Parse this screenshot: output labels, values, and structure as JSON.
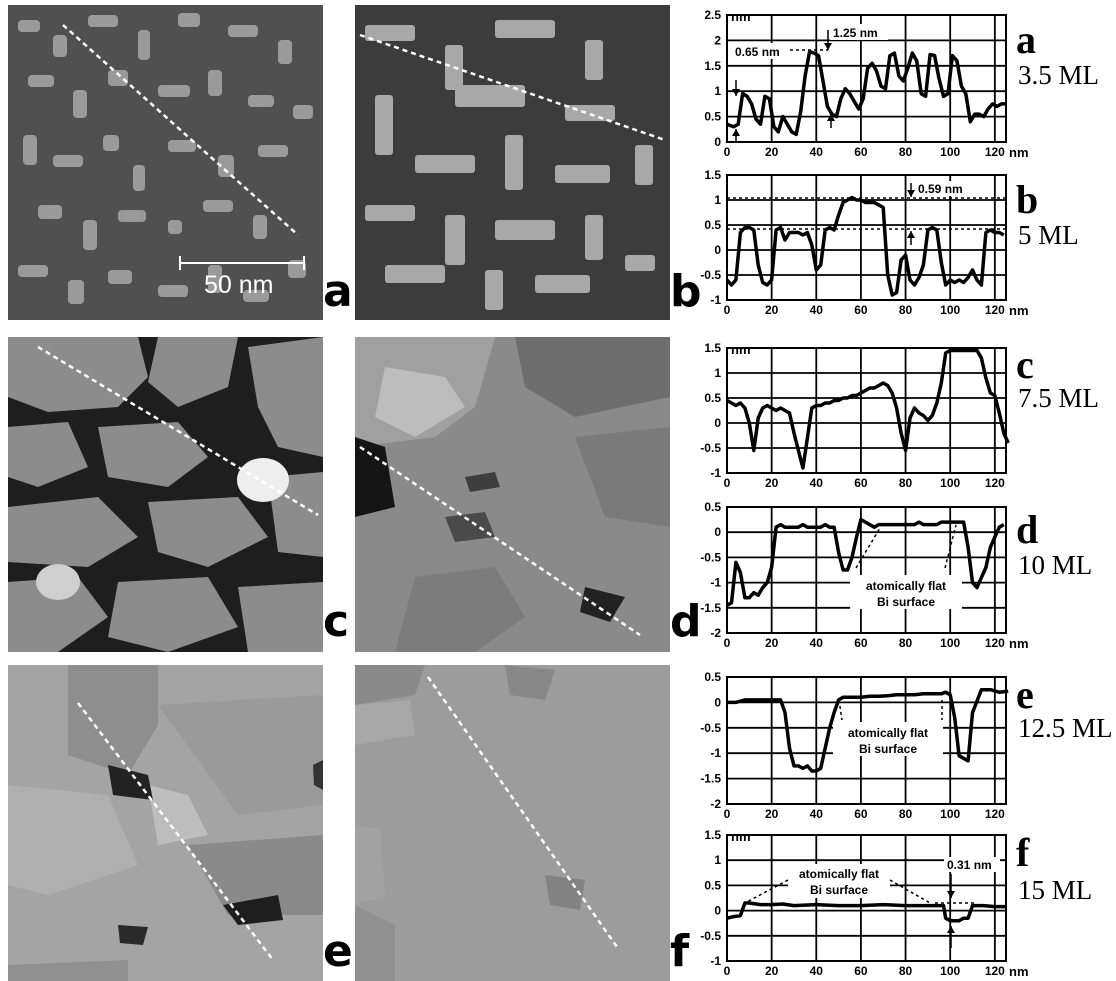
{
  "figure": {
    "scale_bar_label": "50 nm",
    "image_panels": [
      {
        "letter": "a"
      },
      {
        "letter": "b"
      },
      {
        "letter": "c"
      },
      {
        "letter": "d"
      },
      {
        "letter": "e"
      },
      {
        "letter": "f"
      }
    ]
  },
  "chart_data": [
    {
      "type": "line",
      "letter": "a",
      "thickness": "3.5 ML",
      "ylabel": "nm",
      "xlabel": "nm",
      "xlim": [
        0,
        125
      ],
      "ylim": [
        0,
        2.5
      ],
      "xticks": [
        0,
        20,
        40,
        60,
        80,
        100,
        120
      ],
      "yticks": [
        0,
        0.5,
        1,
        1.5,
        2,
        2.5
      ],
      "ytick_labels": [
        "0",
        "0.5",
        "1",
        "1.5",
        "2",
        "2.5"
      ],
      "annotations": [
        "1.25 nm",
        "0.65 nm"
      ],
      "x": [
        0,
        3,
        5,
        7,
        9,
        11,
        13,
        15,
        17,
        19,
        21,
        23,
        25,
        27,
        29,
        31,
        33,
        35,
        37,
        39,
        41,
        43,
        45,
        47,
        49,
        51,
        53,
        55,
        57,
        59,
        61,
        63,
        65,
        67,
        69,
        71,
        73,
        75,
        77,
        79,
        81,
        83,
        85,
        87,
        89,
        91,
        93,
        95,
        97,
        99,
        101,
        103,
        105,
        107,
        109,
        111,
        113,
        115,
        117,
        119,
        121,
        123,
        125
      ],
      "values": [
        0.35,
        0.3,
        0.35,
        0.95,
        0.9,
        0.75,
        0.45,
        0.35,
        0.9,
        0.85,
        0.3,
        0.2,
        0.5,
        0.35,
        0.2,
        0.15,
        0.6,
        1.3,
        1.78,
        1.75,
        1.7,
        1.2,
        0.7,
        0.55,
        0.5,
        0.85,
        1.05,
        0.95,
        0.8,
        0.65,
        0.85,
        1.45,
        1.55,
        1.4,
        1.1,
        1.05,
        1.7,
        1.75,
        1.3,
        1.2,
        1.45,
        1.75,
        1.6,
        0.95,
        0.9,
        1.72,
        1.7,
        1.25,
        0.9,
        0.95,
        1.7,
        1.6,
        1.1,
        0.95,
        0.4,
        0.55,
        0.55,
        0.5,
        0.65,
        0.75,
        0.7,
        0.75,
        0.75
      ]
    },
    {
      "type": "line",
      "letter": "b",
      "thickness": "5 ML",
      "ylabel": "",
      "xlabel": "nm",
      "xlim": [
        0,
        125
      ],
      "ylim": [
        -1,
        1.5
      ],
      "xticks": [
        0,
        20,
        40,
        60,
        80,
        100,
        120
      ],
      "yticks": [
        -1,
        -0.5,
        0,
        0.5,
        1,
        1.5
      ],
      "ytick_labels": [
        "-1",
        "-0.5",
        "0",
        "0.5",
        "1",
        "1.5"
      ],
      "annotations": [
        "0.59 nm"
      ],
      "x": [
        0,
        2,
        4,
        6,
        8,
        10,
        12,
        14,
        16,
        18,
        20,
        22,
        24,
        26,
        28,
        30,
        32,
        34,
        36,
        38,
        40,
        42,
        44,
        46,
        48,
        50,
        52,
        54,
        56,
        58,
        60,
        62,
        64,
        66,
        68,
        70,
        72,
        74,
        76,
        78,
        80,
        82,
        84,
        86,
        88,
        90,
        92,
        94,
        96,
        98,
        100,
        102,
        104,
        106,
        108,
        110,
        112,
        114,
        116,
        118,
        120,
        122,
        124
      ],
      "values": [
        -0.6,
        -0.7,
        -0.6,
        0.35,
        0.45,
        0.45,
        0.4,
        -0.3,
        -0.65,
        -0.7,
        -0.6,
        0.4,
        0.45,
        0.2,
        0.35,
        0.35,
        0.35,
        0.3,
        0.35,
        0.1,
        -0.4,
        -0.3,
        0.4,
        0.45,
        0.4,
        0.7,
        0.95,
        1.0,
        1.05,
        1.0,
        1.0,
        0.95,
        0.95,
        0.95,
        0.9,
        0.85,
        -0.5,
        -0.9,
        -0.85,
        -0.2,
        -0.1,
        -0.6,
        -0.7,
        -0.55,
        -0.3,
        0.4,
        0.45,
        0.4,
        -0.25,
        -0.7,
        -0.6,
        -0.65,
        -0.6,
        -0.65,
        -0.55,
        -0.4,
        -0.6,
        -0.7,
        0.35,
        0.4,
        0.35,
        0.35,
        0.3
      ]
    },
    {
      "type": "line",
      "letter": "c",
      "thickness": "7.5 ML",
      "ylabel": "nm",
      "xlabel": "",
      "xlim": [
        0,
        125
      ],
      "ylim": [
        -1,
        1.5
      ],
      "xticks": [
        0,
        20,
        40,
        60,
        80,
        100,
        120
      ],
      "yticks": [
        -1,
        -0.5,
        0,
        0.5,
        1,
        1.5
      ],
      "ytick_labels": [
        "-1",
        "-0.5",
        "0",
        "0.5",
        "1",
        "1.5"
      ],
      "annotations": [],
      "x": [
        0,
        2,
        4,
        6,
        8,
        10,
        12,
        14,
        16,
        18,
        20,
        22,
        24,
        26,
        28,
        30,
        32,
        34,
        36,
        38,
        40,
        42,
        44,
        46,
        48,
        50,
        52,
        54,
        56,
        58,
        60,
        62,
        64,
        66,
        68,
        70,
        72,
        74,
        76,
        78,
        80,
        82,
        84,
        86,
        88,
        90,
        92,
        94,
        96,
        98,
        100,
        102,
        104,
        106,
        108,
        110,
        112,
        114,
        116,
        118,
        120,
        122,
        124,
        126
      ],
      "values": [
        0.45,
        0.4,
        0.35,
        0.4,
        0.3,
        0.0,
        -0.55,
        0.1,
        0.3,
        0.35,
        0.3,
        0.25,
        0.3,
        0.25,
        0.2,
        -0.2,
        -0.55,
        -0.9,
        -0.3,
        0.3,
        0.35,
        0.35,
        0.4,
        0.4,
        0.45,
        0.45,
        0.5,
        0.5,
        0.55,
        0.55,
        0.6,
        0.65,
        0.7,
        0.7,
        0.75,
        0.8,
        0.75,
        0.6,
        0.3,
        -0.2,
        -0.55,
        0.1,
        0.3,
        0.2,
        0.15,
        0.05,
        0.15,
        0.4,
        0.8,
        1.4,
        1.45,
        1.45,
        1.45,
        1.45,
        1.45,
        1.45,
        1.45,
        1.3,
        0.9,
        0.6,
        0.55,
        0.2,
        -0.2,
        -0.4
      ]
    },
    {
      "type": "line",
      "letter": "d",
      "thickness": "10 ML",
      "ylabel": "",
      "xlabel": "nm",
      "xlim": [
        0,
        125
      ],
      "ylim": [
        -2,
        0.5
      ],
      "xticks": [
        0,
        20,
        40,
        60,
        80,
        100,
        120
      ],
      "yticks": [
        -2,
        -1.5,
        -1,
        -0.5,
        0,
        0.5
      ],
      "ytick_labels": [
        "-2",
        "-1.5",
        "-1",
        "-0.5",
        "0",
        "0.5"
      ],
      "annotations": [
        "atomically flat",
        "Bi surface"
      ],
      "x": [
        0,
        2,
        4,
        6,
        8,
        10,
        12,
        14,
        16,
        18,
        20,
        22,
        24,
        26,
        28,
        30,
        32,
        34,
        36,
        38,
        40,
        42,
        44,
        46,
        48,
        50,
        52,
        54,
        56,
        58,
        60,
        62,
        64,
        66,
        68,
        70,
        72,
        74,
        76,
        78,
        80,
        82,
        84,
        86,
        88,
        90,
        92,
        94,
        96,
        98,
        100,
        102,
        104,
        106,
        108,
        110,
        112,
        114,
        116,
        118,
        120,
        122,
        124
      ],
      "values": [
        -1.45,
        -1.4,
        -0.6,
        -0.8,
        -1.3,
        -1.3,
        -1.2,
        -1.25,
        -1.1,
        -1.0,
        -0.7,
        0.1,
        0.15,
        0.1,
        0.1,
        0.1,
        0.1,
        0.15,
        0.1,
        0.1,
        0.1,
        0.1,
        0.15,
        0.1,
        0.1,
        -0.4,
        -0.75,
        -0.75,
        -0.5,
        -0.1,
        0.25,
        0.2,
        0.15,
        0.1,
        0.15,
        0.15,
        0.15,
        0.15,
        0.15,
        0.15,
        0.15,
        0.15,
        0.15,
        0.2,
        0.15,
        0.15,
        0.15,
        0.15,
        0.2,
        0.2,
        0.2,
        0.2,
        0.2,
        0.2,
        -0.3,
        -1.0,
        -1.1,
        -0.9,
        -0.7,
        -0.3,
        -0.1,
        0.1,
        0.15
      ]
    },
    {
      "type": "line",
      "letter": "e",
      "thickness": "12.5 ML",
      "ylabel": "",
      "xlabel": "",
      "xlim": [
        0,
        125
      ],
      "ylim": [
        -2,
        0.5
      ],
      "xticks": [
        0,
        20,
        40,
        60,
        80,
        100,
        120
      ],
      "yticks": [
        -2,
        -1.5,
        -1,
        -0.5,
        0,
        0.5
      ],
      "ytick_labels": [
        "-2",
        "-1.5",
        "-1",
        "-0.5",
        "0",
        "0.5"
      ],
      "annotations": [
        "atomically flat",
        "Bi surface"
      ],
      "x": [
        0,
        4,
        8,
        12,
        16,
        20,
        24,
        26,
        28,
        30,
        32,
        34,
        36,
        38,
        40,
        42,
        44,
        46,
        48,
        50,
        52,
        56,
        60,
        64,
        68,
        72,
        76,
        80,
        84,
        88,
        92,
        96,
        98,
        100,
        102,
        104,
        106,
        108,
        110,
        114,
        118,
        122,
        126
      ],
      "values": [
        0,
        0.0,
        0.05,
        0.05,
        0.05,
        0.05,
        0.05,
        -0.2,
        -0.9,
        -1.25,
        -1.25,
        -1.3,
        -1.25,
        -1.35,
        -1.35,
        -1.3,
        -0.9,
        -0.5,
        -0.2,
        0.05,
        0.1,
        0.1,
        0.1,
        0.12,
        0.12,
        0.13,
        0.15,
        0.15,
        0.15,
        0.17,
        0.17,
        0.17,
        0.2,
        0.15,
        -0.3,
        -1.05,
        -1.1,
        -1.15,
        -0.2,
        0.25,
        0.25,
        0.2,
        0.22
      ]
    },
    {
      "type": "line",
      "letter": "f",
      "thickness": "15 ML",
      "ylabel": "nm",
      "xlabel": "nm",
      "xlim": [
        0,
        125
      ],
      "ylim": [
        -1,
        1.5
      ],
      "xticks": [
        0,
        20,
        40,
        60,
        80,
        100,
        120
      ],
      "yticks": [
        -1,
        -0.5,
        0,
        0.5,
        1,
        1.5
      ],
      "ytick_labels": [
        "-1",
        "-0.5",
        "0",
        "0.5",
        "1",
        "1.5"
      ],
      "annotations": [
        "atomically flat",
        "Bi surface",
        "0.31 nm"
      ],
      "x": [
        0,
        3,
        6,
        8,
        10,
        15,
        20,
        25,
        30,
        40,
        50,
        60,
        70,
        80,
        90,
        95,
        97,
        98,
        100,
        104,
        106,
        108,
        110,
        115,
        120,
        125
      ],
      "values": [
        -0.15,
        -0.12,
        -0.1,
        0.15,
        0.15,
        0.12,
        0.12,
        0.13,
        0.1,
        0.12,
        0.1,
        0.1,
        0.12,
        0.1,
        0.1,
        0.1,
        0.1,
        -0.15,
        -0.2,
        -0.2,
        -0.15,
        -0.15,
        0.1,
        0.1,
        0.08,
        0.08
      ]
    }
  ]
}
